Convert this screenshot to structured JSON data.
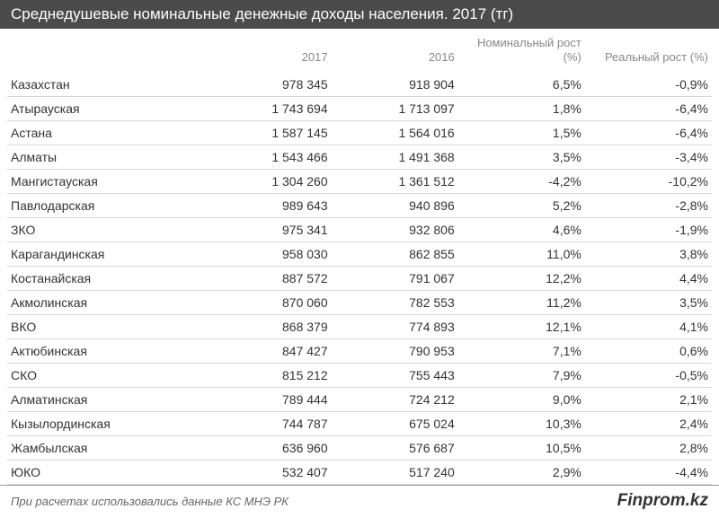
{
  "title": "Среднедушевые номинальные денежные доходы населения. 2017 (тг)",
  "columns": {
    "region": "",
    "y2017": "2017",
    "y2016": "2016",
    "nominal": "Номинальный рост (%)",
    "real": "Реальный рост (%)"
  },
  "rows": [
    {
      "region": "Казахстан",
      "y2017": "978 345",
      "y2016": "918 904",
      "nominal": "6,5%",
      "real": "-0,9%"
    },
    {
      "region": "Атырауская",
      "y2017": "1 743 694",
      "y2016": "1 713 097",
      "nominal": "1,8%",
      "real": "-6,4%"
    },
    {
      "region": "Астана",
      "y2017": "1 587 145",
      "y2016": "1 564 016",
      "nominal": "1,5%",
      "real": "-6,4%"
    },
    {
      "region": "Алматы",
      "y2017": "1 543 466",
      "y2016": "1 491 368",
      "nominal": "3,5%",
      "real": "-3,4%"
    },
    {
      "region": "Мангистауская",
      "y2017": "1 304 260",
      "y2016": "1 361 512",
      "nominal": "-4,2%",
      "real": "-10,2%"
    },
    {
      "region": "Павлодарская",
      "y2017": "989 643",
      "y2016": "940 896",
      "nominal": "5,2%",
      "real": "-2,8%"
    },
    {
      "region": "ЗКО",
      "y2017": "975 341",
      "y2016": "932 806",
      "nominal": "4,6%",
      "real": "-1,9%"
    },
    {
      "region": "Карагандинская",
      "y2017": "958 030",
      "y2016": "862 855",
      "nominal": "11,0%",
      "real": "3,8%"
    },
    {
      "region": "Костанайская",
      "y2017": "887 572",
      "y2016": "791 067",
      "nominal": "12,2%",
      "real": "4,4%"
    },
    {
      "region": "Акмолинская",
      "y2017": "870 060",
      "y2016": "782 553",
      "nominal": "11,2%",
      "real": "3,5%"
    },
    {
      "region": "ВКО",
      "y2017": "868 379",
      "y2016": "774 893",
      "nominal": "12,1%",
      "real": "4,1%"
    },
    {
      "region": "Актюбинская",
      "y2017": "847 427",
      "y2016": "790 953",
      "nominal": "7,1%",
      "real": "0,6%"
    },
    {
      "region": "СКО",
      "y2017": "815 212",
      "y2016": "755 443",
      "nominal": "7,9%",
      "real": "-0,5%"
    },
    {
      "region": "Алматинская",
      "y2017": "789 444",
      "y2016": "724 212",
      "nominal": "9,0%",
      "real": "2,1%"
    },
    {
      "region": "Кызылординская",
      "y2017": "744 787",
      "y2016": "675 024",
      "nominal": "10,3%",
      "real": "2,4%"
    },
    {
      "region": "Жамбылская",
      "y2017": "636 960",
      "y2016": "576 687",
      "nominal": "10,5%",
      "real": "2,8%"
    },
    {
      "region": "ЮКО",
      "y2017": "532 407",
      "y2016": "517 240",
      "nominal": "2,9%",
      "real": "-4,4%"
    }
  ],
  "footer": {
    "note": "При расчетах использовались данные КС МНЭ РК",
    "brand": "Finprom.kz"
  },
  "colors": {
    "header_bg": "#4b4b4b",
    "header_text": "#ffffff",
    "col_header_text": "#888888",
    "row_border": "#d8d8d8",
    "body_text": "#333333",
    "footer_text": "#666666"
  }
}
